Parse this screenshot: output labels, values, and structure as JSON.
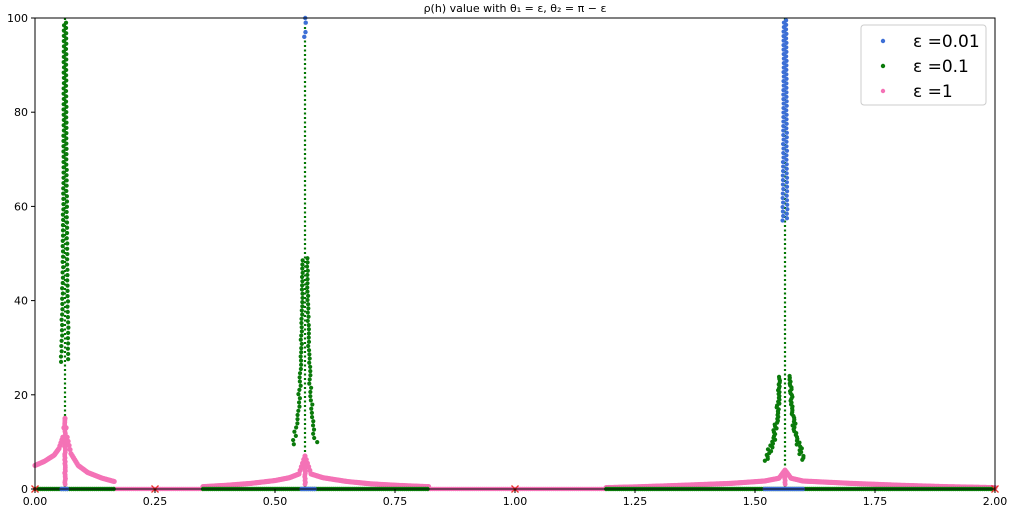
{
  "chart_data": {
    "type": "scatter",
    "title": "ρ(h) value with θ₁ = ε, θ₂ = π − ε",
    "xlabel": "",
    "ylabel": "",
    "xlim": [
      0,
      2
    ],
    "ylim": [
      0,
      100
    ],
    "xticks": [
      0.0,
      0.25,
      0.5,
      0.75,
      1.0,
      1.25,
      1.5,
      1.75,
      2.0
    ],
    "xtick_labels": [
      "0.00",
      "0.25",
      "0.50",
      "0.75",
      "1.00",
      "1.25",
      "1.50",
      "1.75",
      "2.00"
    ],
    "yticks": [
      0,
      20,
      40,
      60,
      80,
      100
    ],
    "ytick_labels": [
      "0",
      "20",
      "40",
      "60",
      "80",
      "100"
    ],
    "grid": false,
    "legend": {
      "placement": "top-right"
    },
    "vertical_lines": {
      "color": "#007700",
      "style": "dotted",
      "x": [
        0.0625,
        0.5625,
        1.5625
      ]
    },
    "markers": {
      "symbol": "x",
      "color": "#e8312a",
      "points": [
        [
          0.0,
          0.0
        ],
        [
          0.25,
          0.0
        ],
        [
          1.0,
          0.0
        ],
        [
          2.0,
          0.0
        ]
      ]
    },
    "series": [
      {
        "name": "ε =0.01",
        "color": "#3d6fd6",
        "zero_segments": [
          [
            0.055,
            0.07
          ],
          [
            0.555,
            0.585
          ],
          [
            1.52,
            1.6
          ]
        ],
        "peaks": [
          {
            "center": 0.5625,
            "side_points": [
              [
                -0.0015,
                96
              ],
              [
                0.001,
                97
              ],
              [
                0.0015,
                99
              ],
              [
                0.0005,
                100
              ]
            ]
          },
          {
            "center": 1.5625,
            "y_min": 57,
            "y_max": 99.5,
            "x_spread": 0.0045,
            "count": 90
          }
        ]
      },
      {
        "name": "ε =0.1",
        "color": "#0a7a0a",
        "zero_segments": [
          [
            0.0,
            0.165
          ],
          [
            0.35,
            0.82
          ],
          [
            1.19,
            2.0
          ]
        ],
        "peaks": [
          {
            "center": 0.0625,
            "y_min": 27,
            "y_max": 99,
            "x_spread": 0.008,
            "count": 130
          },
          {
            "center": 0.5625,
            "y_min": 9.5,
            "y_max": 49,
            "x_spread": 0.025,
            "count": 90
          },
          {
            "center": 1.5625,
            "y_min": 6,
            "y_max": 24,
            "x_spread": 0.043,
            "count": 90
          }
        ]
      },
      {
        "name": "ε =1",
        "color": "#f472b6",
        "curve": {
          "peak_x": [
            0.0625,
            0.5625,
            1.5625
          ],
          "peak_y": [
            15,
            7,
            4
          ],
          "profiles": [
            [
              [
                0.0,
                5.0
              ],
              [
                0.02,
                5.9
              ],
              [
                0.04,
                7.2
              ],
              [
                0.05,
                8.6
              ],
              [
                0.058,
                11.0
              ],
              [
                0.0625,
                15.0
              ],
              [
                0.067,
                11.0
              ],
              [
                0.075,
                7.5
              ],
              [
                0.09,
                5.0
              ],
              [
                0.11,
                3.5
              ],
              [
                0.14,
                2.3
              ],
              [
                0.165,
                1.6
              ]
            ],
            [
              [
                0.35,
                0.5
              ],
              [
                0.4,
                0.8
              ],
              [
                0.45,
                1.2
              ],
              [
                0.5,
                1.8
              ],
              [
                0.53,
                2.4
              ],
              [
                0.55,
                3.2
              ],
              [
                0.5625,
                7.0
              ],
              [
                0.575,
                3.2
              ],
              [
                0.6,
                2.4
              ],
              [
                0.65,
                1.6
              ],
              [
                0.7,
                1.1
              ],
              [
                0.75,
                0.8
              ],
              [
                0.82,
                0.5
              ]
            ],
            [
              [
                1.19,
                0.3
              ],
              [
                1.25,
                0.45
              ],
              [
                1.35,
                0.8
              ],
              [
                1.45,
                1.2
              ],
              [
                1.52,
                1.7
              ],
              [
                1.55,
                2.3
              ],
              [
                1.5625,
                4.0
              ],
              [
                1.575,
                2.3
              ],
              [
                1.6,
                1.7
              ],
              [
                1.7,
                1.2
              ],
              [
                1.8,
                0.8
              ],
              [
                1.9,
                0.5
              ],
              [
                2.0,
                0.3
              ]
            ]
          ]
        },
        "zero_segments": [
          [
            0.165,
            0.35
          ],
          [
            0.82,
            1.19
          ]
        ]
      }
    ]
  }
}
